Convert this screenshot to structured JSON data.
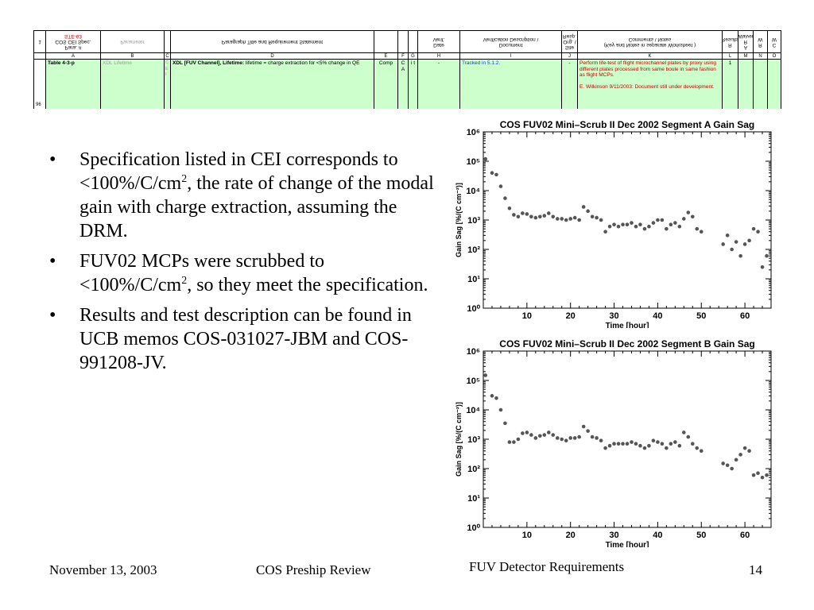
{
  "spreadsheet": {
    "headers": [
      {
        "key": "A",
        "lines": [
          "1",
          "Para. #",
          "COS CEI Spec.",
          "STE-63"
        ]
      },
      {
        "key": "B",
        "lines": [
          "Parameter"
        ]
      },
      {
        "key": "C",
        "lines": [
          ""
        ]
      },
      {
        "key": "D",
        "lines": [
          "Paragraph Title and Requirement Statement"
        ]
      },
      {
        "key": "E",
        "lines": [
          ""
        ]
      },
      {
        "key": "F",
        "lines": [
          ""
        ]
      },
      {
        "key": "G",
        "lines": [
          ""
        ]
      },
      {
        "key": "H",
        "lines": [
          "Date",
          "Verif."
        ]
      },
      {
        "key": "I",
        "lines": [
          "Document",
          "Verification Description \\"
        ]
      },
      {
        "key": "J",
        "lines": [
          "Site",
          "Org. \\",
          "Resp."
        ]
      },
      {
        "key": "K",
        "lines": [
          "(Key and Notes in separate Worksheet )",
          "Comments \\ Notes"
        ]
      },
      {
        "key": "L",
        "lines": [
          "R",
          "Results"
        ]
      },
      {
        "key": "M",
        "lines": [
          "A",
          "R",
          "Waiver"
        ]
      },
      {
        "key": "N",
        "lines": [
          "R",
          "W"
        ]
      },
      {
        "key": "O",
        "lines": [
          "C",
          "W"
        ]
      }
    ],
    "row": {
      "row_number": "96",
      "spec": "Table 4-3-p",
      "parameter": "XDL Lifetime",
      "c_col": "C E I",
      "requirement_bold": "XDL [FUV Channel], Lifetime:",
      "requirement_text": " lifetime = charge extraction for <5% change in QE",
      "e_col": "Comp",
      "f_col": "C A",
      "g_col": "i t",
      "h_col": "-",
      "i_col": "Tracked in 5.1.2.",
      "j_col": "-",
      "k_col_1": "Perform life-test of flight microchannel plates by proxy using different plates processed from same boule in same fashion as flight MCPs.",
      "k_col_2": "E. Wilkinson 9/11/2003:  Document still under development.",
      "l_col": "1"
    }
  },
  "bullets": {
    "b1_pre": "Specification listed in CEI corresponds to <100%/C/cm",
    "b1_sup": "2",
    "b1_post": ", the rate of change of the modal gain with charge extraction, assuming the DRM.",
    "b2_pre": "FUV02 MCPs were scrubbed to <100%/C/cm",
    "b2_sup": "2",
    "b2_post": ", so they meet the specification.",
    "b3": "Results and test description can be found in UCB memos COS-031027-JBM and COS-991208-JV."
  },
  "chart_data": [
    {
      "type": "scatter",
      "title": "COS FUV02 Mini–Scrub II Dec 2002 Segment A Gain Sag",
      "xlabel": "Time [hour]",
      "ylabel": "Gain Sag [%/(C cm⁻²)]",
      "xlim": [
        0,
        66
      ],
      "ylim": [
        1,
        1000000
      ],
      "yscale": "log",
      "xticks": [
        "10",
        "20",
        "30",
        "40",
        "50",
        "60"
      ],
      "yticks": [
        "10⁰",
        "10¹",
        "10²",
        "10³",
        "10⁴",
        "10⁵",
        "10⁶"
      ],
      "grid": false,
      "points": [
        [
          0.5,
          120000
        ],
        [
          2,
          40000
        ],
        [
          3,
          35000
        ],
        [
          4,
          14000
        ],
        [
          5,
          5500
        ],
        [
          6,
          2500
        ],
        [
          7,
          1500
        ],
        [
          8,
          1300
        ],
        [
          9,
          1700
        ],
        [
          10,
          1600
        ],
        [
          11,
          1300
        ],
        [
          12,
          1200
        ],
        [
          13,
          1300
        ],
        [
          14,
          1400
        ],
        [
          15,
          1700
        ],
        [
          16,
          1300
        ],
        [
          17,
          1100
        ],
        [
          18,
          1100
        ],
        [
          19,
          1000
        ],
        [
          20,
          1100
        ],
        [
          21,
          1200
        ],
        [
          22,
          1000
        ],
        [
          23,
          2800
        ],
        [
          24,
          2000
        ],
        [
          25,
          1300
        ],
        [
          26,
          1200
        ],
        [
          27,
          1000
        ],
        [
          28,
          400
        ],
        [
          29,
          600
        ],
        [
          30,
          700
        ],
        [
          31,
          600
        ],
        [
          32,
          700
        ],
        [
          33,
          700
        ],
        [
          34,
          800
        ],
        [
          35,
          600
        ],
        [
          36,
          700
        ],
        [
          37,
          500
        ],
        [
          38,
          600
        ],
        [
          39,
          800
        ],
        [
          40,
          1000
        ],
        [
          41,
          1000
        ],
        [
          42,
          500
        ],
        [
          43,
          700
        ],
        [
          44,
          800
        ],
        [
          45,
          600
        ],
        [
          46,
          1100
        ],
        [
          47,
          1800
        ],
        [
          48,
          1300
        ],
        [
          49,
          500
        ],
        [
          50,
          400
        ],
        [
          55,
          150
        ],
        [
          56,
          300
        ],
        [
          57,
          100
        ],
        [
          58,
          180
        ],
        [
          59,
          60
        ],
        [
          60,
          150
        ],
        [
          61,
          200
        ],
        [
          62,
          500
        ],
        [
          63,
          400
        ],
        [
          64,
          25
        ],
        [
          65,
          60
        ]
      ]
    },
    {
      "type": "scatter",
      "title": "COS FUV02 Mini–Scrub II Dec 2002 Segment B Gain Sag",
      "xlabel": "Time [hour]",
      "ylabel": "Gain Sag [%/(C cm⁻²)]",
      "xlim": [
        0,
        66
      ],
      "ylim": [
        1,
        1000000
      ],
      "yscale": "log",
      "xticks": [
        "10",
        "20",
        "30",
        "40",
        "50",
        "60"
      ],
      "yticks": [
        "10⁰",
        "10¹",
        "10²",
        "10³",
        "10⁴",
        "10⁵",
        "10⁶"
      ],
      "grid": false,
      "points": [
        [
          0.5,
          150000
        ],
        [
          2,
          30000
        ],
        [
          3,
          25000
        ],
        [
          4,
          10000
        ],
        [
          5,
          3500
        ],
        [
          6,
          800
        ],
        [
          7,
          800
        ],
        [
          8,
          1000
        ],
        [
          9,
          1600
        ],
        [
          10,
          1700
        ],
        [
          11,
          1400
        ],
        [
          12,
          1100
        ],
        [
          13,
          1300
        ],
        [
          14,
          1400
        ],
        [
          15,
          1700
        ],
        [
          16,
          1400
        ],
        [
          17,
          1100
        ],
        [
          18,
          1000
        ],
        [
          19,
          900
        ],
        [
          20,
          1100
        ],
        [
          21,
          1100
        ],
        [
          22,
          1200
        ],
        [
          23,
          2700
        ],
        [
          24,
          1900
        ],
        [
          25,
          1200
        ],
        [
          26,
          1100
        ],
        [
          27,
          900
        ],
        [
          28,
          500
        ],
        [
          29,
          600
        ],
        [
          30,
          700
        ],
        [
          31,
          700
        ],
        [
          32,
          700
        ],
        [
          33,
          700
        ],
        [
          34,
          800
        ],
        [
          35,
          700
        ],
        [
          36,
          600
        ],
        [
          37,
          500
        ],
        [
          38,
          600
        ],
        [
          39,
          900
        ],
        [
          40,
          800
        ],
        [
          41,
          700
        ],
        [
          42,
          500
        ],
        [
          43,
          700
        ],
        [
          44,
          800
        ],
        [
          45,
          600
        ],
        [
          46,
          1700
        ],
        [
          47,
          1200
        ],
        [
          48,
          700
        ],
        [
          49,
          500
        ],
        [
          50,
          400
        ],
        [
          55,
          150
        ],
        [
          56,
          130
        ],
        [
          57,
          100
        ],
        [
          58,
          200
        ],
        [
          59,
          300
        ],
        [
          60,
          500
        ],
        [
          61,
          400
        ],
        [
          62,
          60
        ],
        [
          63,
          70
        ],
        [
          64,
          50
        ],
        [
          65,
          60
        ]
      ]
    }
  ],
  "footer": {
    "date": "November 13, 2003",
    "event": "COS Preship Review",
    "section": "FUV Detector Requirements",
    "page": "14"
  }
}
